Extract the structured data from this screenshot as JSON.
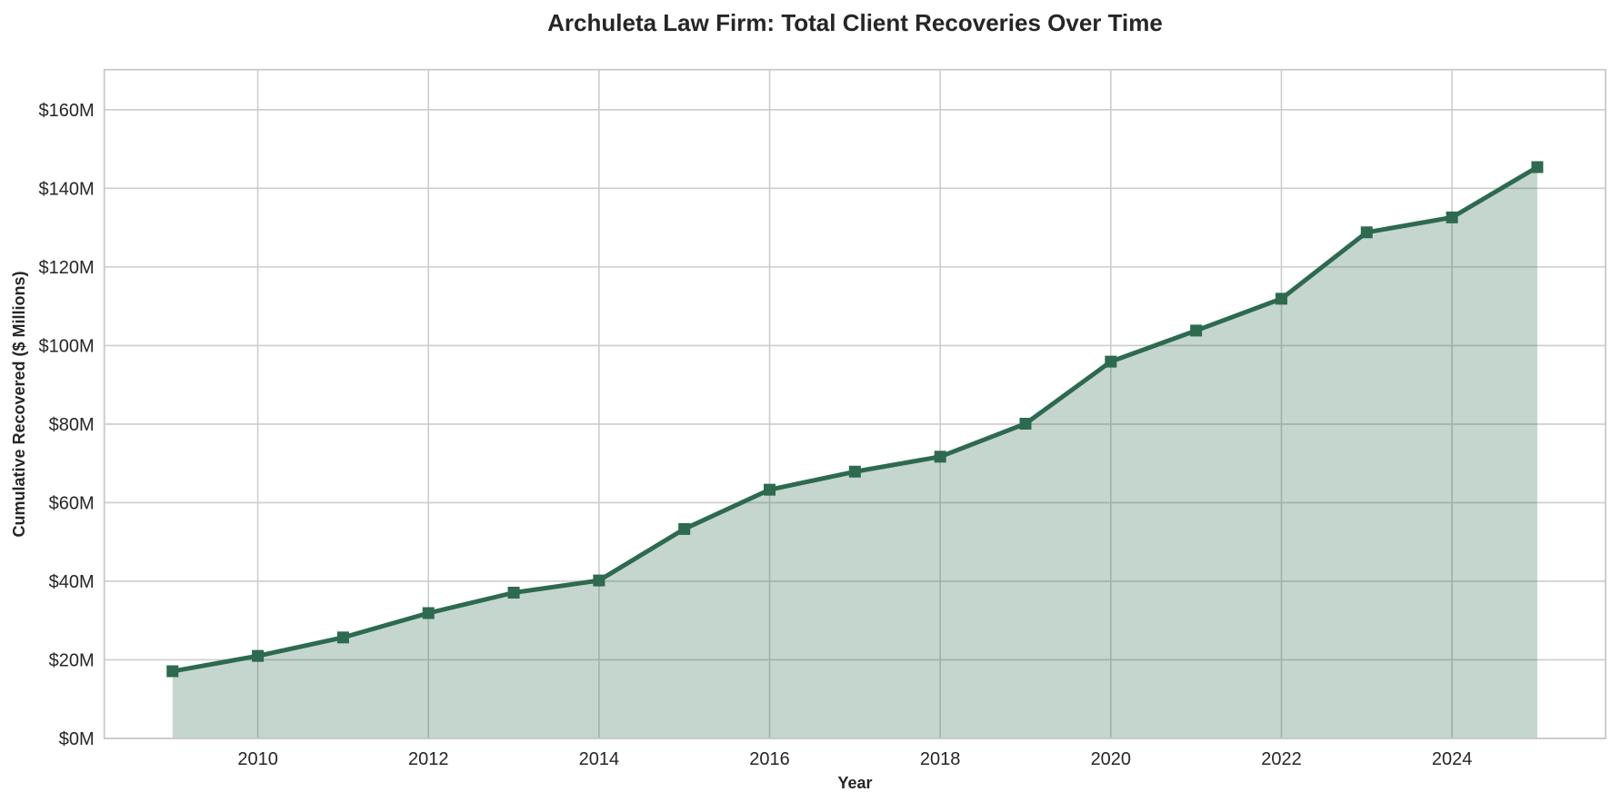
{
  "chart_data": {
    "type": "area",
    "title": "Archuleta Law Firm: Total Client Recoveries Over Time",
    "xlabel": "Year",
    "ylabel": "Cumulative Recovered ($ Millions)",
    "series": [
      {
        "name": "Cumulative Recovered",
        "x": [
          2009,
          2010,
          2011,
          2012,
          2013,
          2014,
          2015,
          2016,
          2017,
          2018,
          2019,
          2020,
          2021,
          2022,
          2023,
          2024,
          2025
        ],
        "values": [
          17.1,
          21.0,
          25.7,
          31.9,
          37.1,
          40.2,
          53.3,
          63.3,
          67.9,
          71.7,
          80.1,
          95.9,
          103.8,
          111.9,
          128.8,
          132.6,
          145.4
        ]
      }
    ],
    "x_ticks": [
      {
        "value": 2010,
        "label": "2010"
      },
      {
        "value": 2012,
        "label": "2012"
      },
      {
        "value": 2014,
        "label": "2014"
      },
      {
        "value": 2016,
        "label": "2016"
      },
      {
        "value": 2018,
        "label": "2018"
      },
      {
        "value": 2020,
        "label": "2020"
      },
      {
        "value": 2022,
        "label": "2022"
      },
      {
        "value": 2024,
        "label": "2024"
      }
    ],
    "y_ticks": [
      {
        "value": 0,
        "label": "$0M"
      },
      {
        "value": 20,
        "label": "$20M"
      },
      {
        "value": 40,
        "label": "$40M"
      },
      {
        "value": 60,
        "label": "$60M"
      },
      {
        "value": 80,
        "label": "$80M"
      },
      {
        "value": 100,
        "label": "$100M"
      },
      {
        "value": 120,
        "label": "$120M"
      },
      {
        "value": 140,
        "label": "$140M"
      },
      {
        "value": 160,
        "label": "$160M"
      }
    ],
    "xlim": [
      2008.2,
      2025.8
    ],
    "ylim": [
      0,
      170.2
    ],
    "grid": true,
    "legend": "none",
    "marker": "square",
    "colors": {
      "line": "#2d6a4f",
      "fill_opacity": 0.28,
      "grid": "#cccccc",
      "frame": "#c9c9c9",
      "text": "#262626"
    }
  }
}
